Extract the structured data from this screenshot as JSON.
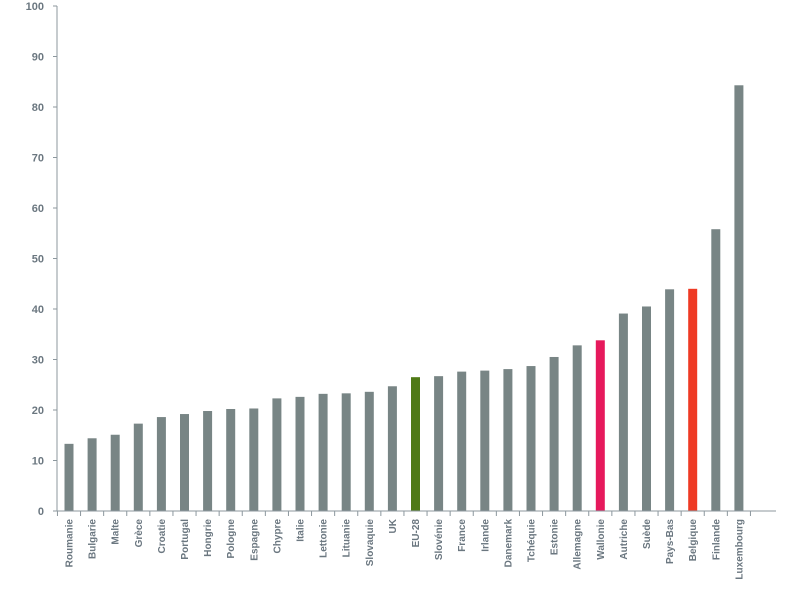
{
  "chart_data": {
    "type": "bar",
    "title": "",
    "xlabel": "",
    "ylabel": "",
    "ylim": [
      0,
      100
    ],
    "yticks": [
      0,
      10,
      20,
      30,
      40,
      50,
      60,
      70,
      80,
      90,
      100
    ],
    "grid": false,
    "default_color": "#788585",
    "categories": [
      "Roumanie",
      "Bulgarie",
      "Malte",
      "Grèce",
      "Croatie",
      "Portugal",
      "Hongrie",
      "Pologne",
      "Espagne",
      "Chypre",
      "Italie",
      "Lettonie",
      "Lituanie",
      "Slovaquie",
      "UK",
      "EU-28",
      "Slovénie",
      "France",
      "Irlande",
      "Danemark",
      "Tchéquie",
      "Estonie",
      "Allemagne",
      "Wallonie",
      "Autriche",
      "Suède",
      "Pays-Bas",
      "Belgique",
      "Finlande",
      "Luxembourg"
    ],
    "values": [
      13.3,
      14.4,
      15.1,
      17.3,
      18.6,
      19.2,
      19.8,
      20.2,
      20.3,
      22.3,
      22.6,
      23.2,
      23.3,
      23.6,
      24.7,
      26.5,
      26.7,
      27.6,
      27.8,
      28.1,
      28.7,
      30.5,
      32.8,
      33.8,
      39.1,
      40.5,
      43.9,
      44.0,
      55.8,
      84.3
    ],
    "highlights": {
      "EU-28": "#4f7a16",
      "Wallonie": "#e6195c",
      "Belgique": "#ee3a24"
    }
  }
}
